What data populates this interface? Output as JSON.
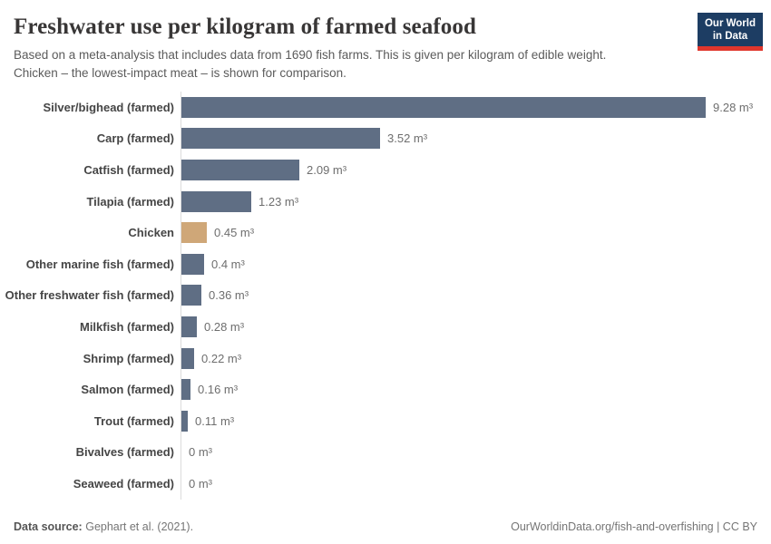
{
  "header": {
    "title": "Freshwater use per kilogram of farmed seafood",
    "subtitle_line1": "Based on a meta-analysis that includes data from 1690 fish farms. This is given per kilogram of edible weight.",
    "subtitle_line2": "Chicken – the lowest-impact meat – is shown for comparison."
  },
  "logo": {
    "line1": "Our World",
    "line2": "in Data",
    "bg_color": "#1d3d63",
    "stripe_color": "#e0362c"
  },
  "chart_data": {
    "type": "bar",
    "orientation": "horizontal",
    "title": "Freshwater use per kilogram of farmed seafood",
    "unit": "m³",
    "categories": [
      "Silver/bighead (farmed)",
      "Carp (farmed)",
      "Catfish (farmed)",
      "Tilapia (farmed)",
      "Chicken",
      "Other marine fish (farmed)",
      "Other freshwater fish (farmed)",
      "Milkfish (farmed)",
      "Shrimp (farmed)",
      "Salmon (farmed)",
      "Trout (farmed)",
      "Bivalves (farmed)",
      "Seaweed (farmed)"
    ],
    "values": [
      9.28,
      3.52,
      2.09,
      1.23,
      0.45,
      0.4,
      0.36,
      0.28,
      0.22,
      0.16,
      0.11,
      0,
      0
    ],
    "value_labels": [
      "9.28 m³",
      "3.52 m³",
      "2.09 m³",
      "1.23 m³",
      "0.45 m³",
      "0.4 m³",
      "0.36 m³",
      "0.28 m³",
      "0.22 m³",
      "0.16 m³",
      "0.11 m³",
      "0 m³",
      "0 m³"
    ],
    "xlim": [
      0,
      9.28
    ],
    "grid": false,
    "legend": "none",
    "bar_color": "#5f6e84",
    "highlight_color": "#cfa778",
    "highlight_index": 4,
    "axis_line_color": "#dcdcdc"
  },
  "footer": {
    "source_label": "Data source:",
    "source_value": "Gephart et al. (2021).",
    "right_text": "OurWorldinData.org/fish-and-overfishing | CC BY"
  }
}
